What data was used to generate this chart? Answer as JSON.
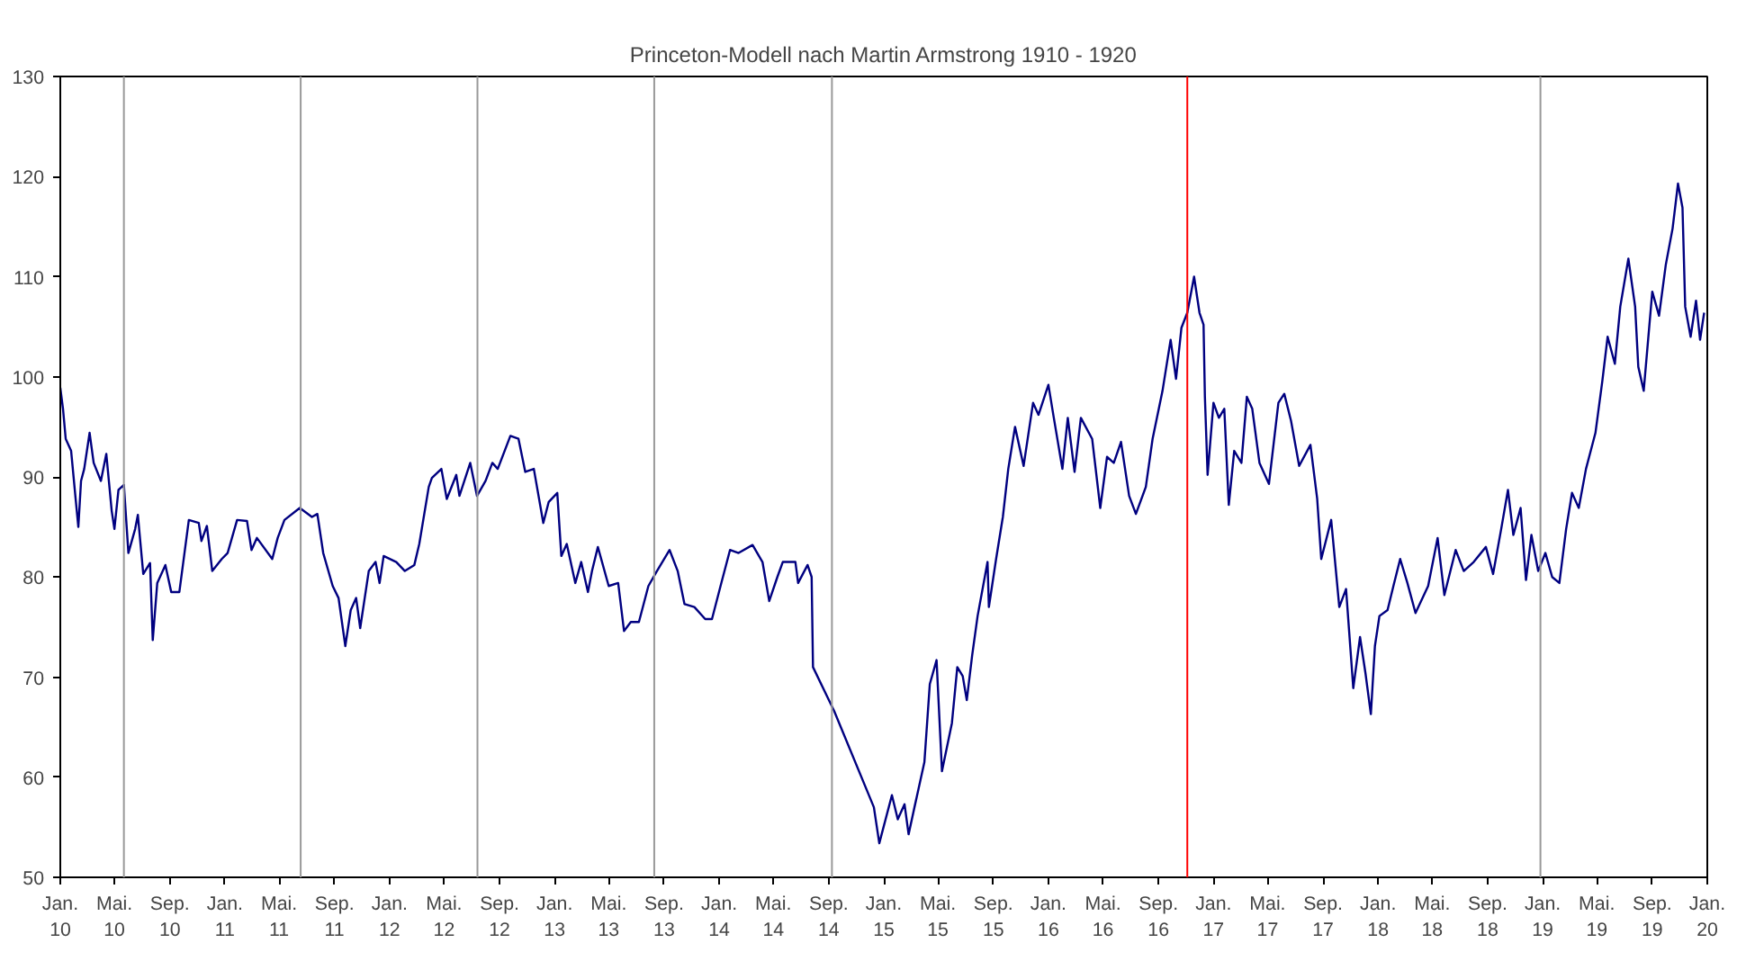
{
  "chart_data": {
    "type": "line",
    "title": "Princeton-Modell nach Martin Armstrong 1910 - 1920",
    "x": [
      "1910-01-01",
      "1910-01-07",
      "1910-01-13",
      "1910-01-25",
      "1910-02-04",
      "1910-02-10",
      "1910-02-16",
      "1910-02-23",
      "1910-03-07",
      "1910-03-16",
      "1910-04-01",
      "1910-04-13",
      "1910-04-25",
      "1910-05-01",
      "1910-05-10",
      "1910-05-22",
      "1910-06-01",
      "1910-06-16",
      "1910-06-22",
      "1910-07-04",
      "1910-07-19",
      "1910-07-25",
      "1910-08-04",
      "1910-08-22",
      "1910-09-04",
      "1910-09-22",
      "1910-10-13",
      "1910-11-04",
      "1910-11-10",
      "1910-11-22",
      "1910-12-04",
      "1910-12-25",
      "1911-01-07",
      "1911-01-28",
      "1911-02-19",
      "1911-03-01",
      "1911-03-13",
      "1911-04-16",
      "1911-04-28",
      "1911-05-13",
      "1911-06-16",
      "1911-07-13",
      "1911-07-25",
      "1911-08-07",
      "1911-08-28",
      "1911-09-10",
      "1911-09-25",
      "1911-10-07",
      "1911-10-19",
      "1911-10-28",
      "1911-11-16",
      "1911-12-01",
      "1911-12-10",
      "1911-12-19",
      "1912-01-16",
      "1912-02-04",
      "1912-02-25",
      "1912-03-07",
      "1912-03-28",
      "1912-04-04",
      "1912-04-25",
      "1912-05-07",
      "1912-05-28",
      "1912-06-04",
      "1912-06-28",
      "1912-07-13",
      "1912-08-01",
      "1912-08-16",
      "1912-08-28",
      "1912-09-25",
      "1912-10-13",
      "1912-10-28",
      "1912-11-16",
      "1912-12-07",
      "1912-12-19",
      "1913-01-07",
      "1913-01-16",
      "1913-01-28",
      "1913-02-16",
      "1913-03-01",
      "1913-03-16",
      "1913-03-25",
      "1913-04-07",
      "1913-05-01",
      "1913-05-22",
      "1913-06-04",
      "1913-06-19",
      "1913-07-07",
      "1913-07-28",
      "1913-08-16",
      "1913-09-13",
      "1913-10-01",
      "1913-10-16",
      "1913-11-07",
      "1913-12-01",
      "1913-12-16",
      "1914-01-04",
      "1914-01-25",
      "1914-02-13",
      "1914-03-16",
      "1914-04-07",
      "1914-04-22",
      "1914-05-10",
      "1914-05-22",
      "1914-06-19",
      "1914-06-25",
      "1914-07-16",
      "1914-07-25",
      "1914-07-28",
      "1914-09-13",
      "1914-12-10",
      "1914-12-22",
      "1915-01-19",
      "1915-02-01",
      "1915-02-16",
      "1915-02-25",
      "1915-03-10",
      "1915-04-01",
      "1915-04-13",
      "1915-04-28",
      "1915-05-10",
      "1915-06-01",
      "1915-06-13",
      "1915-06-25",
      "1915-07-04",
      "1915-07-16",
      "1915-07-28",
      "1915-08-19",
      "1915-08-22",
      "1915-09-07",
      "1915-09-22",
      "1915-10-04",
      "1915-10-19",
      "1915-11-07",
      "1915-11-28",
      "1915-12-10",
      "1916-01-01",
      "1916-01-13",
      "1916-02-01",
      "1916-02-13",
      "1916-02-28",
      "1916-03-13",
      "1916-04-07",
      "1916-04-25",
      "1916-05-10",
      "1916-05-25",
      "1916-06-10",
      "1916-06-28",
      "1916-07-13",
      "1916-08-04",
      "1916-08-19",
      "1916-09-10",
      "1916-09-28",
      "1916-10-10",
      "1916-10-22",
      "1916-11-04",
      "1916-11-19",
      "1916-12-01",
      "1916-12-10",
      "1916-12-13",
      "1916-12-19",
      "1917-01-01",
      "1917-01-13",
      "1917-01-25",
      "1917-02-04",
      "1917-02-16",
      "1917-03-04",
      "1917-03-16",
      "1917-03-28",
      "1917-04-13",
      "1917-05-04",
      "1917-05-25",
      "1917-06-07",
      "1917-06-22",
      "1917-07-10",
      "1917-08-04",
      "1917-08-19",
      "1917-08-28",
      "1917-09-19",
      "1917-10-07",
      "1917-10-22",
      "1917-11-07",
      "1917-11-22",
      "1917-12-04",
      "1917-12-16",
      "1917-12-25",
      "1918-01-04",
      "1918-01-22",
      "1918-02-04",
      "1918-02-19",
      "1918-03-07",
      "1918-03-25",
      "1918-04-22",
      "1918-05-13",
      "1918-05-28",
      "1918-06-22",
      "1918-07-10",
      "1918-08-01",
      "1918-08-28",
      "1918-09-13",
      "1918-10-01",
      "1918-10-16",
      "1918-10-28",
      "1918-11-13",
      "1918-11-25",
      "1918-12-07",
      "1918-12-22",
      "1919-01-07",
      "1919-01-22",
      "1919-02-07",
      "1919-02-22",
      "1919-03-07",
      "1919-03-22",
      "1919-04-07",
      "1919-04-28",
      "1919-05-13",
      "1919-05-25",
      "1919-06-10",
      "1919-06-22",
      "1919-07-10",
      "1919-07-25",
      "1919-08-01",
      "1919-08-13",
      "1919-09-01",
      "1919-09-16",
      "1919-10-01",
      "1919-10-16",
      "1919-10-28",
      "1919-11-07",
      "1919-11-13",
      "1919-11-25",
      "1919-12-07",
      "1919-12-16",
      "1919-12-25"
    ],
    "series": [
      {
        "color": "#000080",
        "values": [
          98.9,
          96.8,
          93.8,
          92.6,
          87.8,
          85.0,
          89.6,
          90.8,
          94.4,
          91.4,
          89.6,
          92.3,
          86.6,
          84.8,
          88.7,
          89.2,
          82.4,
          84.8,
          86.2,
          80.3,
          81.4,
          73.7,
          79.4,
          81.2,
          78.5,
          78.5,
          85.7,
          85.4,
          83.6,
          85.1,
          80.6,
          81.8,
          82.4,
          85.7,
          85.6,
          82.7,
          83.9,
          81.8,
          83.9,
          85.7,
          86.9,
          86.0,
          86.3,
          82.4,
          79.1,
          77.9,
          73.1,
          76.7,
          77.9,
          74.9,
          80.6,
          81.5,
          79.4,
          82.1,
          81.5,
          80.6,
          81.2,
          83.3,
          89.0,
          89.9,
          90.8,
          87.8,
          90.2,
          88.1,
          91.4,
          88.1,
          89.6,
          91.4,
          90.8,
          94.1,
          93.8,
          90.5,
          90.8,
          85.4,
          87.5,
          88.4,
          82.1,
          83.3,
          79.4,
          81.5,
          78.5,
          80.6,
          83.0,
          79.1,
          79.4,
          74.6,
          75.5,
          75.5,
          79.1,
          80.6,
          82.7,
          80.6,
          77.3,
          77.0,
          75.8,
          75.8,
          79.1,
          82.7,
          82.4,
          83.2,
          81.5,
          77.6,
          80.0,
          81.5,
          81.5,
          79.4,
          81.2,
          80.0,
          71.0,
          66.6,
          57.0,
          53.4,
          58.2,
          55.8,
          57.3,
          54.3,
          57.0,
          61.5,
          69.3,
          71.7,
          60.6,
          65.4,
          71.0,
          70.1,
          67.7,
          72.2,
          76.1,
          81.5,
          77.0,
          81.8,
          86.0,
          90.8,
          95.0,
          91.1,
          97.4,
          96.2,
          99.2,
          95.9,
          90.8,
          95.9,
          90.5,
          95.9,
          93.8,
          86.9,
          92.0,
          91.4,
          93.5,
          88.1,
          86.3,
          89.0,
          93.8,
          98.6,
          103.7,
          99.8,
          104.9,
          106.4,
          110.0,
          106.4,
          105.2,
          98.0,
          90.2,
          97.4,
          95.9,
          96.8,
          87.2,
          92.6,
          91.4,
          98.0,
          96.8,
          91.4,
          89.3,
          97.4,
          98.3,
          95.6,
          91.1,
          93.2,
          87.8,
          81.8,
          85.7,
          77.0,
          78.8,
          68.9,
          74.0,
          70.4,
          66.3,
          73.1,
          76.1,
          76.7,
          79.1,
          81.8,
          79.4,
          76.4,
          79.1,
          83.9,
          78.2,
          82.7,
          80.6,
          81.5,
          83.0,
          80.3,
          84.8,
          88.7,
          84.2,
          86.9,
          79.7,
          84.2,
          80.6,
          82.4,
          80.0,
          79.4,
          84.8,
          88.4,
          86.9,
          90.8,
          94.4,
          99.5,
          104.0,
          101.3,
          107.0,
          111.8,
          107.0,
          101.0,
          98.6,
          108.5,
          106.1,
          111.2,
          114.8,
          119.3,
          116.9,
          107.0,
          104.0,
          107.6,
          103.7,
          106.4
        ]
      }
    ],
    "xlim": [
      "1910-01-01",
      "1920-01-01"
    ],
    "xticks": [
      {
        "value": "1910-01-01",
        "label": "Jan.\n10"
      },
      {
        "value": "1910-05-01",
        "label": "Mai.\n10"
      },
      {
        "value": "1910-09-01",
        "label": "Sep.\n10"
      },
      {
        "value": "1911-01-01",
        "label": "Jan.\n11"
      },
      {
        "value": "1911-05-01",
        "label": "Mai.\n11"
      },
      {
        "value": "1911-09-01",
        "label": "Sep.\n11"
      },
      {
        "value": "1912-01-01",
        "label": "Jan.\n12"
      },
      {
        "value": "1912-05-01",
        "label": "Mai.\n12"
      },
      {
        "value": "1912-09-01",
        "label": "Sep.\n12"
      },
      {
        "value": "1913-01-01",
        "label": "Jan.\n13"
      },
      {
        "value": "1913-05-01",
        "label": "Mai.\n13"
      },
      {
        "value": "1913-09-01",
        "label": "Sep.\n13"
      },
      {
        "value": "1914-01-01",
        "label": "Jan.\n14"
      },
      {
        "value": "1914-05-01",
        "label": "Mai.\n14"
      },
      {
        "value": "1914-09-01",
        "label": "Sep.\n14"
      },
      {
        "value": "1915-01-01",
        "label": "Jan.\n15"
      },
      {
        "value": "1915-05-01",
        "label": "Mai.\n15"
      },
      {
        "value": "1915-09-01",
        "label": "Sep.\n15"
      },
      {
        "value": "1916-01-01",
        "label": "Jan.\n16"
      },
      {
        "value": "1916-05-01",
        "label": "Mai.\n16"
      },
      {
        "value": "1916-09-01",
        "label": "Sep.\n16"
      },
      {
        "value": "1917-01-01",
        "label": "Jan.\n17"
      },
      {
        "value": "1917-05-01",
        "label": "Mai.\n17"
      },
      {
        "value": "1917-09-01",
        "label": "Sep.\n17"
      },
      {
        "value": "1918-01-01",
        "label": "Jan.\n18"
      },
      {
        "value": "1918-05-01",
        "label": "Mai.\n18"
      },
      {
        "value": "1918-09-01",
        "label": "Sep.\n18"
      },
      {
        "value": "1919-01-01",
        "label": "Jan.\n19"
      },
      {
        "value": "1919-05-01",
        "label": "Mai.\n19"
      },
      {
        "value": "1919-09-01",
        "label": "Sep.\n19"
      },
      {
        "value": "1920-01-01",
        "label": "Jan.\n20"
      }
    ],
    "ylim": [
      50,
      130
    ],
    "yticks": [
      50,
      60,
      70,
      80,
      90,
      100,
      110,
      120,
      130
    ],
    "grid": false,
    "marker": "none",
    "line_style": "solid",
    "ref_lines": [
      {
        "axis": "x",
        "value": "1910-05-22",
        "color": "#999999"
      },
      {
        "axis": "x",
        "value": "1911-06-18",
        "color": "#999999"
      },
      {
        "axis": "x",
        "value": "1912-07-14",
        "color": "#999999"
      },
      {
        "axis": "x",
        "value": "1913-08-10",
        "color": "#999999"
      },
      {
        "axis": "x",
        "value": "1914-09-08",
        "color": "#999999"
      },
      {
        "axis": "x",
        "value": "1916-11-04",
        "color": "#ff0000"
      },
      {
        "axis": "x",
        "value": "1918-12-27",
        "color": "#999999"
      }
    ]
  }
}
